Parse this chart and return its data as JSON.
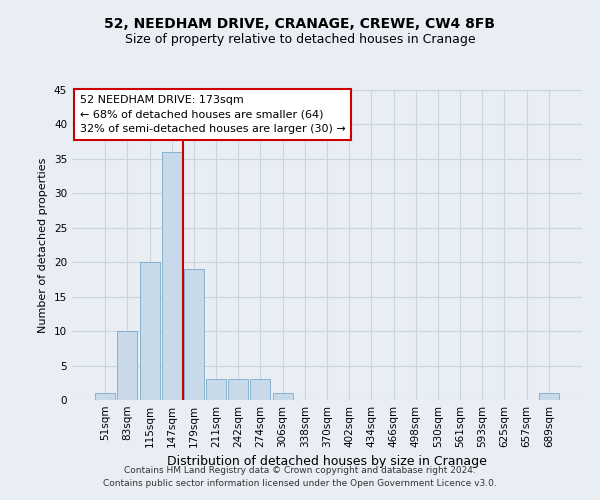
{
  "title1": "52, NEEDHAM DRIVE, CRANAGE, CREWE, CW4 8FB",
  "title2": "Size of property relative to detached houses in Cranage",
  "xlabel": "Distribution of detached houses by size in Cranage",
  "ylabel": "Number of detached properties",
  "bar_labels": [
    "51sqm",
    "83sqm",
    "115sqm",
    "147sqm",
    "179sqm",
    "211sqm",
    "242sqm",
    "274sqm",
    "306sqm",
    "338sqm",
    "370sqm",
    "402sqm",
    "434sqm",
    "466sqm",
    "498sqm",
    "530sqm",
    "561sqm",
    "593sqm",
    "625sqm",
    "657sqm",
    "689sqm"
  ],
  "bar_values": [
    1,
    10,
    20,
    36,
    19,
    3,
    3,
    3,
    1,
    0,
    0,
    0,
    0,
    0,
    0,
    0,
    0,
    0,
    0,
    0,
    1
  ],
  "bar_color": "#c8d9ea",
  "bar_edge_color": "#7aaaca",
  "grid_color": "#c8d4de",
  "ylim": [
    0,
    45
  ],
  "yticks": [
    0,
    5,
    10,
    15,
    20,
    25,
    30,
    35,
    40,
    45
  ],
  "box_text_line1": "52 NEEDHAM DRIVE: 173sqm",
  "box_text_line2": "← 68% of detached houses are smaller (64)",
  "box_text_line3": "32% of semi-detached houses are larger (30) →",
  "box_color": "#ffffff",
  "box_edge_color": "#cc0000",
  "vline_color": "#cc0000",
  "footer_line1": "Contains HM Land Registry data © Crown copyright and database right 2024.",
  "footer_line2": "Contains public sector information licensed under the Open Government Licence v3.0.",
  "background_color": "#e8eef4",
  "plot_bg_color": "#e8eef4",
  "title1_fontsize": 10,
  "title2_fontsize": 9,
  "ylabel_fontsize": 8,
  "xlabel_fontsize": 9,
  "tick_fontsize": 7.5,
  "footer_fontsize": 6.5,
  "ann_fontsize": 8
}
